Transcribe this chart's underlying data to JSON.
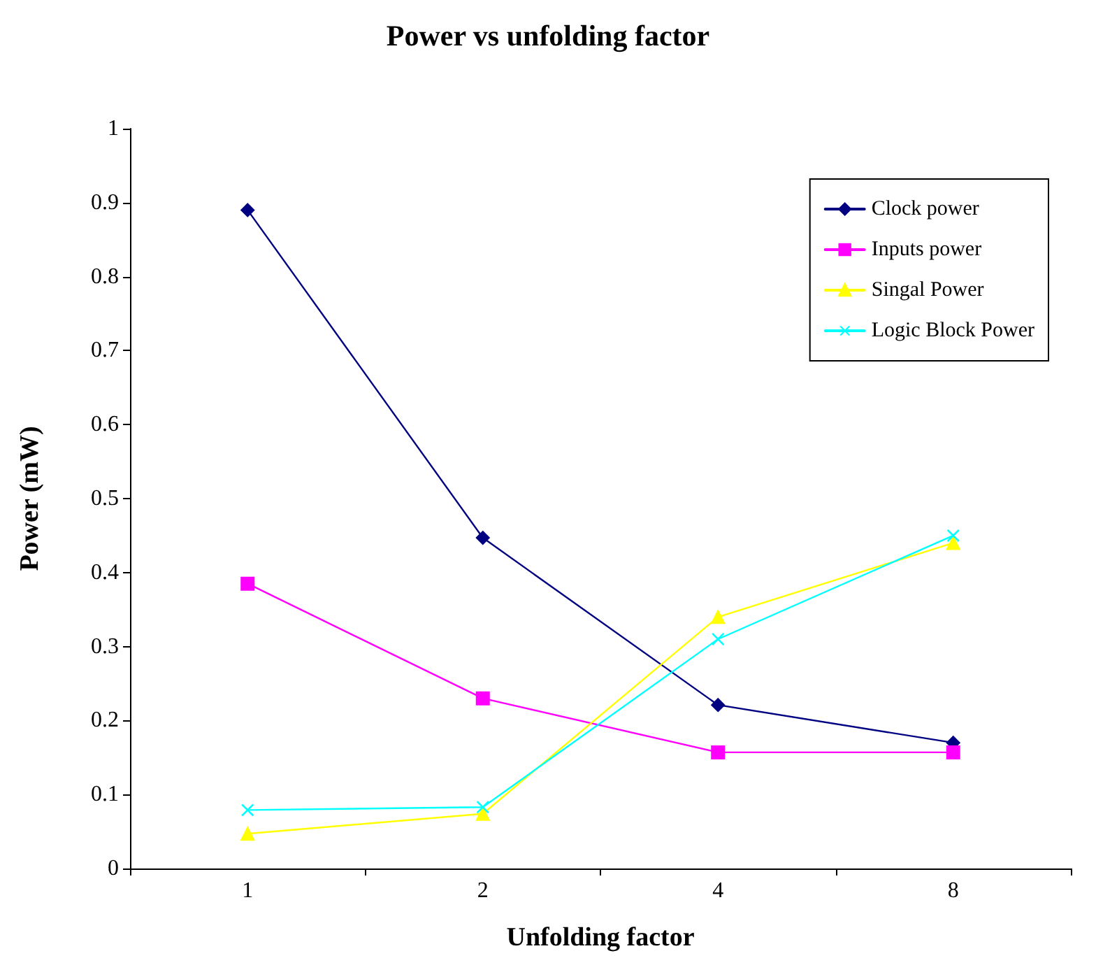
{
  "chart_data": {
    "type": "line",
    "title": "Power vs unfolding factor",
    "xlabel": "Unfolding factor",
    "ylabel": "Power (mW)",
    "categories": [
      "1",
      "2",
      "4",
      "8"
    ],
    "series": [
      {
        "name": "Clock power",
        "color": "#000080",
        "marker": "diamond",
        "values": [
          0.89,
          0.447,
          0.221,
          0.17
        ]
      },
      {
        "name": "Inputs power",
        "color": "#ff00ff",
        "marker": "square",
        "values": [
          0.385,
          0.23,
          0.157,
          0.157
        ]
      },
      {
        "name": "Singal Power",
        "color": "#ffff00",
        "marker": "triangle",
        "values": [
          0.047,
          0.074,
          0.34,
          0.44
        ]
      },
      {
        "name": "Logic Block Power",
        "color": "#00ffff",
        "marker": "cross",
        "values": [
          0.079,
          0.083,
          0.31,
          0.45
        ]
      }
    ],
    "ylim": [
      0,
      1
    ],
    "yticks": [
      0,
      0.1,
      0.2,
      0.3,
      0.4,
      0.5,
      0.6,
      0.7,
      0.8,
      0.9,
      1
    ],
    "grid": false,
    "legend": "top right"
  }
}
